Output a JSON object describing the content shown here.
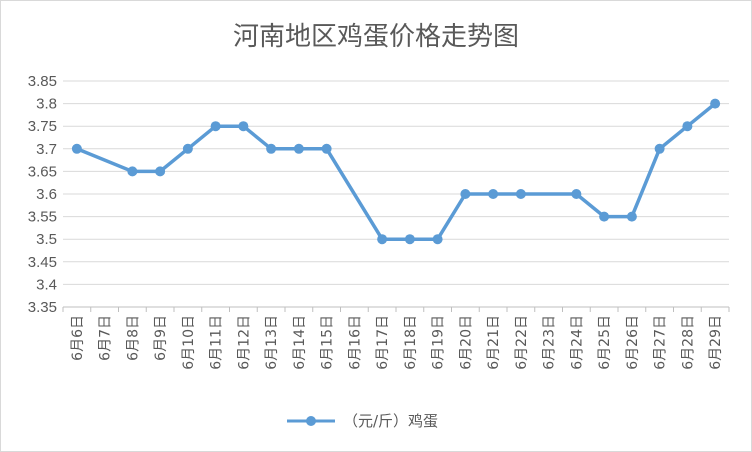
{
  "chart_data": {
    "type": "line",
    "title": "河南地区鸡蛋价格走势图",
    "xlabel": "",
    "ylabel": "",
    "categories": [
      "6月6日",
      "6月7日",
      "6月8日",
      "6月9日",
      "6月10日",
      "6月11日",
      "6月12日",
      "6月13日",
      "6月14日",
      "6月15日",
      "6月16日",
      "6月17日",
      "6月18日",
      "6月19日",
      "6月20日",
      "6月21日",
      "6月22日",
      "6月23日",
      "6月24日",
      "6月25日",
      "6月26日",
      "6月27日",
      "6月28日",
      "6月29日"
    ],
    "series": [
      {
        "name": "（元/斤）鸡蛋",
        "color": "#5b9bd5",
        "values": [
          3.7,
          null,
          3.65,
          3.65,
          3.7,
          3.75,
          3.75,
          3.7,
          3.7,
          3.7,
          null,
          3.5,
          3.5,
          3.5,
          3.6,
          3.6,
          3.6,
          null,
          3.6,
          3.55,
          3.55,
          3.7,
          3.75,
          3.8
        ]
      }
    ],
    "ylim": [
      3.35,
      3.85
    ],
    "yticks": [
      "3.35",
      "3.4",
      "3.45",
      "3.5",
      "3.55",
      "3.6",
      "3.65",
      "3.7",
      "3.75",
      "3.8",
      "3.85"
    ],
    "grid": true,
    "legend_position": "bottom"
  }
}
